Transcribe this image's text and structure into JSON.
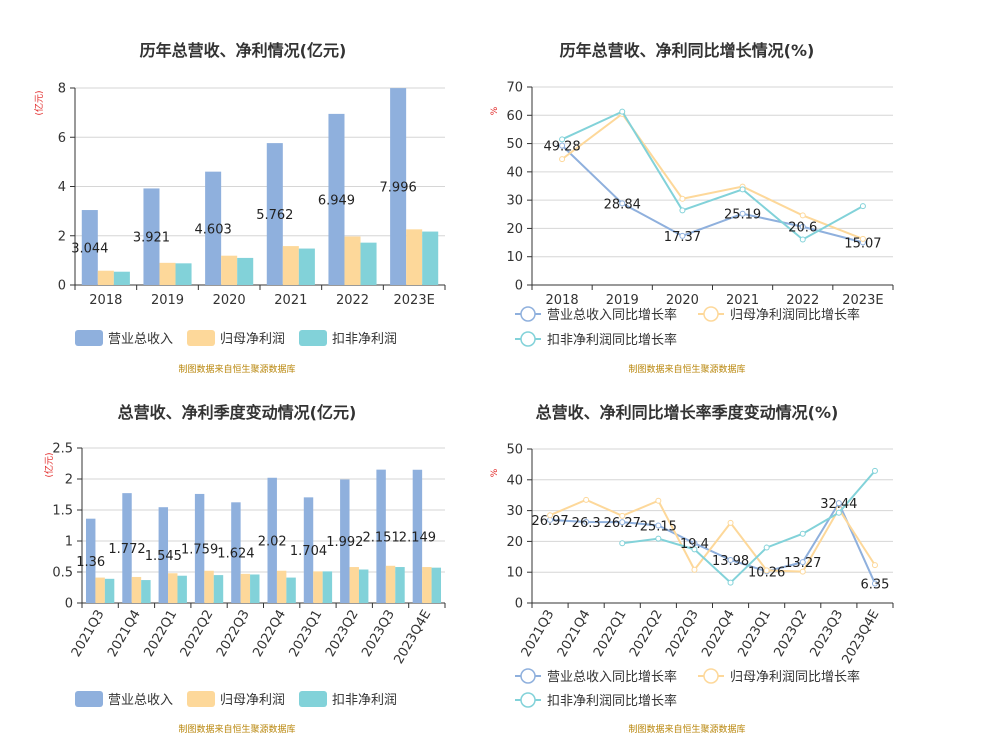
{
  "colors": {
    "revenue": "#8FB0DD",
    "netprofit": "#FDD89A",
    "deducted": "#82D2D9",
    "axis": "#333333",
    "grid": "#d6d6d6",
    "unit_red": "#e0201f",
    "source": "#b8860b"
  },
  "source_note": "制图数据来自恒生聚源数据库",
  "chart_data": [
    {
      "id": "annual-bar",
      "type": "bar",
      "title": "历年总营收、净利情况(亿元)",
      "unit_label": "(亿元)",
      "categories": [
        "2018",
        "2019",
        "2020",
        "2021",
        "2022",
        "2023E"
      ],
      "ylim": [
        0,
        8
      ],
      "yticks": [
        "0",
        "2",
        "4",
        "6",
        "8"
      ],
      "series": [
        {
          "name": "营业总收入",
          "color_key": "revenue",
          "values": [
            3.044,
            3.921,
            4.603,
            5.762,
            6.949,
            7.996
          ]
        },
        {
          "name": "归母净利润",
          "color_key": "netprofit",
          "values": [
            0.58,
            0.9,
            1.19,
            1.58,
            1.97,
            2.26
          ]
        },
        {
          "name": "扣非净利润",
          "color_key": "deducted",
          "values": [
            0.54,
            0.88,
            1.1,
            1.48,
            1.72,
            2.17
          ]
        }
      ],
      "data_labels": [
        "3.044",
        "3.921",
        "4.603",
        "5.762",
        "6.949",
        "7.996"
      ],
      "legend": "bottom-left"
    },
    {
      "id": "annual-line",
      "type": "line",
      "title": "历年总营收、净利同比增长情况(%)",
      "unit_label": "%",
      "categories": [
        "2018",
        "2019",
        "2020",
        "2021",
        "2022",
        "2023E"
      ],
      "ylim": [
        0,
        70
      ],
      "yticks": [
        "0",
        "10",
        "20",
        "30",
        "40",
        "50",
        "60",
        "70"
      ],
      "series": [
        {
          "name": "营业总收入同比增长率",
          "color_key": "revenue",
          "values": [
            49.28,
            28.84,
            17.37,
            25.19,
            20.6,
            15.07
          ]
        },
        {
          "name": "归母净利润同比增长率",
          "color_key": "netprofit",
          "values": [
            44.5,
            60.5,
            30.5,
            34.8,
            24.6,
            16.3
          ]
        },
        {
          "name": "扣非净利润同比增长率",
          "color_key": "deducted",
          "values": [
            51.5,
            61.3,
            26.4,
            33.8,
            16.1,
            27.9
          ]
        }
      ],
      "data_labels": [
        "49.28",
        "28.84",
        "17.37",
        "25.19",
        "20.6",
        "15.07"
      ],
      "legend": "bottom-left"
    },
    {
      "id": "quarter-bar",
      "type": "bar",
      "title": "总营收、净利季度变动情况(亿元)",
      "unit_label": "(亿元)",
      "categories": [
        "2021Q3",
        "2021Q4",
        "2022Q1",
        "2022Q2",
        "2022Q3",
        "2022Q4",
        "2023Q1",
        "2023Q2",
        "2023Q3",
        "2023Q4E"
      ],
      "ylim": [
        0,
        2.5
      ],
      "yticks": [
        "0",
        "0.5",
        "1",
        "1.5",
        "2",
        "2.5"
      ],
      "series": [
        {
          "name": "营业总收入",
          "color_key": "revenue",
          "values": [
            1.36,
            1.772,
            1.545,
            1.759,
            1.624,
            2.02,
            1.704,
            1.992,
            2.151,
            2.149
          ]
        },
        {
          "name": "归母净利润",
          "color_key": "netprofit",
          "values": [
            0.41,
            0.42,
            0.48,
            0.52,
            0.47,
            0.52,
            0.51,
            0.58,
            0.6,
            0.58
          ]
        },
        {
          "name": "扣非净利润",
          "color_key": "deducted",
          "values": [
            0.39,
            0.37,
            0.44,
            0.45,
            0.46,
            0.41,
            0.51,
            0.54,
            0.58,
            0.57
          ]
        }
      ],
      "data_labels": [
        "1.36",
        "1.772",
        "1.545",
        "1.759",
        "1.624",
        "2.02",
        "1.704",
        "1.992",
        "2.151",
        "2.149"
      ],
      "legend": "bottom-left"
    },
    {
      "id": "quarter-line",
      "type": "line",
      "title": "总营收、净利同比增长率季度变动情况(%)",
      "unit_label": "%",
      "categories": [
        "2021Q3",
        "2021Q4",
        "2022Q1",
        "2022Q2",
        "2022Q3",
        "2022Q4",
        "2023Q1",
        "2023Q2",
        "2023Q3",
        "2023Q4E"
      ],
      "ylim": [
        0,
        50
      ],
      "yticks": [
        "0",
        "10",
        "20",
        "30",
        "40",
        "50"
      ],
      "series": [
        {
          "name": "营业总收入同比增长率",
          "color_key": "revenue",
          "values": [
            26.97,
            26.3,
            26.27,
            25.15,
            19.4,
            13.98,
            10.26,
            13.27,
            32.44,
            6.35
          ]
        },
        {
          "name": "归母净利润同比增长率",
          "color_key": "netprofit",
          "values": [
            28.5,
            33.5,
            28.3,
            33.2,
            10.8,
            26.0,
            10.6,
            10.2,
            30.5,
            12.3
          ]
        },
        {
          "name": "扣非净利润同比增长率",
          "color_key": "deducted",
          "values": [
            null,
            null,
            19.4,
            20.9,
            17.4,
            6.6,
            18.0,
            22.5,
            29.3,
            42.9
          ]
        }
      ],
      "data_labels": [
        "26.97",
        "26.3",
        "26.27",
        "25.15",
        "19.4",
        "13.98",
        "10.26",
        "13.27",
        "32.44",
        "6.35"
      ],
      "legend": "bottom-left"
    }
  ]
}
